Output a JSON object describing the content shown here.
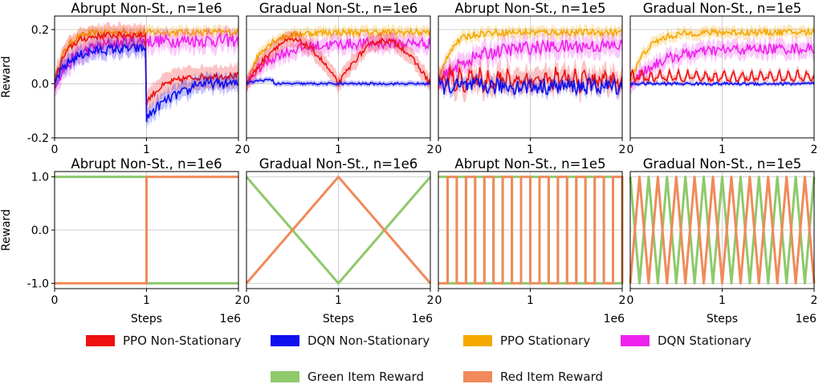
{
  "colors": {
    "ppo_ns": "#ee1111",
    "dqn_ns": "#1010ee",
    "ppo_s": "#f5a800",
    "dqn_s": "#ee22ee",
    "green_item": "#8ec96a",
    "red_item": "#f08a5a"
  },
  "legend": {
    "row1": [
      {
        "label": "PPO Non-Stationary",
        "color_key": "ppo_ns"
      },
      {
        "label": "DQN Non-Stationary",
        "color_key": "dqn_ns"
      },
      {
        "label": "PPO Stationary",
        "color_key": "ppo_s"
      },
      {
        "label": "DQN Stationary",
        "color_key": "dqn_s"
      }
    ],
    "row2": [
      {
        "label": "Green Item Reward",
        "color_key": "green_item"
      },
      {
        "label": "Red Item Reward",
        "color_key": "red_item"
      }
    ]
  },
  "chart_data": [
    {
      "type": "line",
      "title": "Abrupt Non-St., n=1e6",
      "ylabel": "Reward",
      "xlabel": "",
      "xlim": [
        0,
        2
      ],
      "ylim": [
        -0.2,
        0.25
      ],
      "xticks": [
        "0",
        "1",
        "2"
      ],
      "yticks": [
        "-0.2",
        "0.0",
        "0.2"
      ],
      "x_multiplier": "",
      "series": [
        {
          "name": "PPO Non-Stationary"
        },
        {
          "name": "DQN Non-Stationary"
        },
        {
          "name": "PPO Stationary"
        },
        {
          "name": "DQN Stationary"
        }
      ]
    },
    {
      "type": "line",
      "title": "Gradual Non-St., n=1e6",
      "ylabel": "",
      "xlabel": "",
      "xlim": [
        0,
        2
      ],
      "ylim": [
        -0.2,
        0.25
      ],
      "xticks": [
        "0",
        "1",
        "2"
      ],
      "yticks": [],
      "x_multiplier": ""
    },
    {
      "type": "line",
      "title": "Abrupt Non-St., n=1e5",
      "ylabel": "",
      "xlabel": "",
      "xlim": [
        0,
        2
      ],
      "ylim": [
        -0.2,
        0.25
      ],
      "xticks": [
        "0",
        "1",
        "2"
      ],
      "yticks": [],
      "x_multiplier": ""
    },
    {
      "type": "line",
      "title": "Gradual Non-St., n=1e5",
      "ylabel": "",
      "xlabel": "",
      "xlim": [
        0,
        2
      ],
      "ylim": [
        -0.2,
        0.25
      ],
      "xticks": [
        "0",
        "1",
        "2"
      ],
      "yticks": [],
      "x_multiplier": ""
    },
    {
      "type": "line",
      "title": "Abrupt Non-St., n=1e6",
      "ylabel": "Reward",
      "xlabel": "Steps",
      "xlim": [
        0,
        2
      ],
      "ylim": [
        -1.1,
        1.1
      ],
      "xticks": [
        "0",
        "1",
        "2"
      ],
      "yticks": [
        "-1.0",
        "0.0",
        "1.0"
      ],
      "x_multiplier": "1e6",
      "series": [
        {
          "name": "Green Item Reward",
          "x": [
            0,
            1,
            1,
            2
          ],
          "y": [
            1,
            1,
            -1,
            -1
          ]
        },
        {
          "name": "Red Item Reward",
          "x": [
            0,
            1,
            1,
            2
          ],
          "y": [
            -1,
            -1,
            1,
            1
          ]
        }
      ]
    },
    {
      "type": "line",
      "title": "Gradual Non-St., n=1e6",
      "ylabel": "",
      "xlabel": "Steps",
      "xlim": [
        0,
        2
      ],
      "ylim": [
        -1.1,
        1.1
      ],
      "xticks": [
        "0",
        "1",
        "2"
      ],
      "yticks": [],
      "x_multiplier": "1e6",
      "series": [
        {
          "name": "Green Item Reward",
          "x": [
            0,
            1,
            2
          ],
          "y": [
            1,
            -1,
            1
          ]
        },
        {
          "name": "Red Item Reward",
          "x": [
            0,
            1,
            2
          ],
          "y": [
            -1,
            1,
            -1
          ]
        }
      ]
    },
    {
      "type": "line",
      "title": "Abrupt Non-St., n=1e5",
      "ylabel": "",
      "xlabel": "",
      "xlim": [
        0,
        2
      ],
      "ylim": [
        -1.1,
        1.1
      ],
      "xticks": [
        "0",
        "1",
        "2"
      ],
      "yticks": [],
      "x_multiplier": "1e6",
      "switch_period": 0.1
    },
    {
      "type": "line",
      "title": "Gradual Non-St., n=1e5",
      "ylabel": "",
      "xlabel": "Steps",
      "xlim": [
        0,
        2
      ],
      "ylim": [
        -1.1,
        1.1
      ],
      "xticks": [
        "0",
        "1",
        "2"
      ],
      "yticks": [],
      "x_multiplier": "1e6",
      "switch_period": 0.1
    }
  ]
}
